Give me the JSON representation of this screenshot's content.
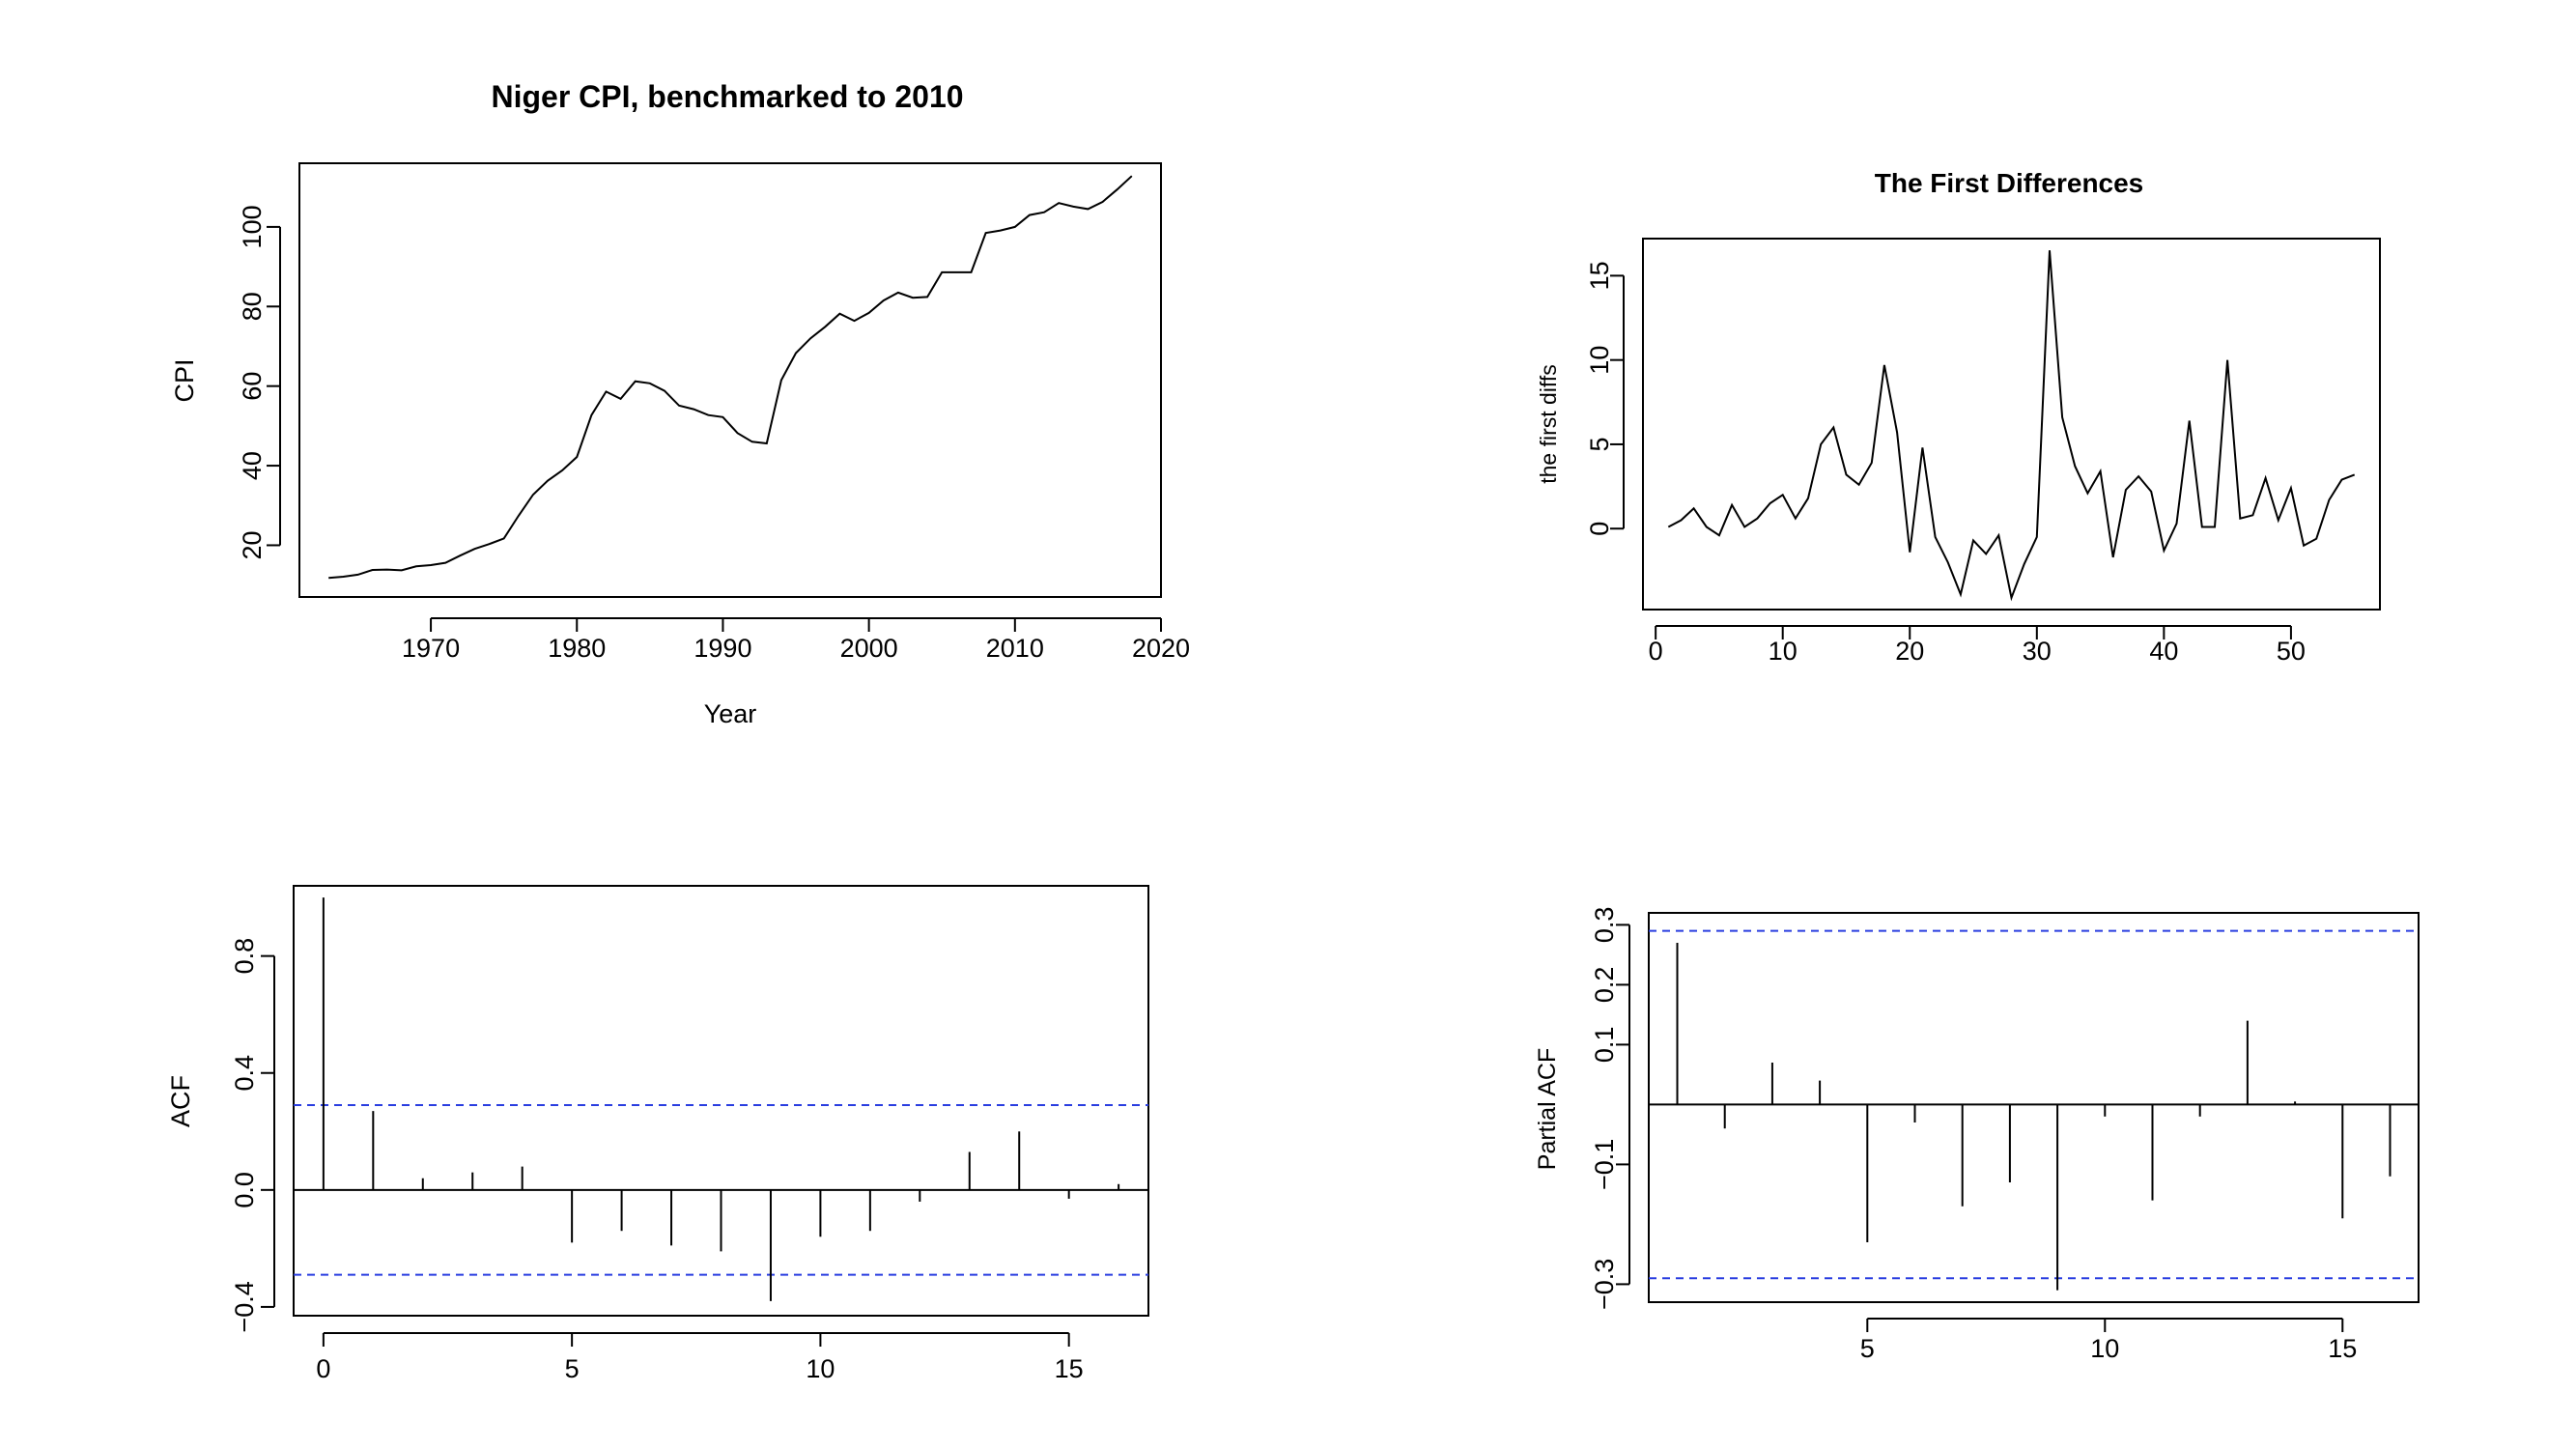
{
  "chart_data": [
    {
      "id": "cpi",
      "type": "line",
      "title": "Niger CPI, benchmarked to 2010",
      "xlabel": "Year",
      "ylabel": "CPI",
      "xlim": [
        1961,
        2020
      ],
      "ylim": [
        7,
        116
      ],
      "xticks": [
        1970,
        1980,
        1990,
        2000,
        2010,
        2020
      ],
      "yticks": [
        20,
        40,
        60,
        80,
        100
      ],
      "x": [
        1963,
        1964,
        1965,
        1966,
        1967,
        1968,
        1969,
        1970,
        1971,
        1972,
        1973,
        1974,
        1975,
        1976,
        1977,
        1978,
        1979,
        1980,
        1981,
        1982,
        1983,
        1984,
        1985,
        1986,
        1987,
        1988,
        1989,
        1990,
        1991,
        1992,
        1993,
        1994,
        1995,
        1996,
        1997,
        1998,
        1999,
        2000,
        2001,
        2002,
        2003,
        2004,
        2005,
        2006,
        2007,
        2008,
        2009,
        2010,
        2011,
        2012,
        2013,
        2014,
        2015,
        2016,
        2017,
        2018
      ],
      "values": [
        11.8,
        12.1,
        12.6,
        13.8,
        13.9,
        13.7,
        14.7,
        15.0,
        15.6,
        17.4,
        19.1,
        20.3,
        21.7,
        27.4,
        32.7,
        36.2,
        38.8,
        42.2,
        52.7,
        58.6,
        56.8,
        61.2,
        60.7,
        58.8,
        55.1,
        54.2,
        52.7,
        52.2,
        48.2,
        46.0,
        45.6,
        61.5,
        68.3,
        72.0,
        74.9,
        78.2,
        76.4,
        78.4,
        81.5,
        83.5,
        82.2,
        82.4,
        88.6,
        88.6,
        88.6,
        98.5,
        99.1,
        100.0,
        103.0,
        103.7,
        106.0,
        105.1,
        104.5,
        106.3,
        109.4,
        112.8
      ],
      "grid": false
    },
    {
      "id": "diffs",
      "type": "line",
      "title": "The First Differences",
      "xlabel": "",
      "ylabel": "the first diffs",
      "xlim": [
        -1,
        57
      ],
      "ylim": [
        -4.8,
        17.2
      ],
      "xticks": [
        0,
        10,
        20,
        30,
        40,
        50
      ],
      "yticks": [
        0,
        5,
        10,
        15
      ],
      "x": [
        1,
        2,
        3,
        4,
        5,
        6,
        7,
        8,
        9,
        10,
        11,
        12,
        13,
        14,
        15,
        16,
        17,
        18,
        19,
        20,
        21,
        22,
        23,
        24,
        25,
        26,
        27,
        28,
        29,
        30,
        31,
        32,
        33,
        34,
        35,
        36,
        37,
        38,
        39,
        40,
        41,
        42,
        43,
        44,
        45,
        46,
        47,
        48,
        49,
        50,
        51,
        52,
        53,
        54,
        55
      ],
      "values": [
        0.1,
        0.5,
        1.2,
        0.1,
        -0.4,
        1.4,
        0.1,
        0.6,
        1.5,
        2.0,
        0.6,
        1.8,
        5.0,
        6.0,
        3.2,
        2.6,
        3.9,
        9.7,
        5.7,
        -1.4,
        4.8,
        -0.5,
        -2.0,
        -3.9,
        -0.7,
        -1.5,
        -0.4,
        -4.1,
        -2.1,
        -0.5,
        16.5,
        6.6,
        3.7,
        2.1,
        3.4,
        -1.7,
        2.3,
        3.1,
        2.2,
        -1.3,
        0.3,
        6.4,
        0.1,
        0.1,
        10.0,
        0.6,
        0.8,
        3.0,
        0.5,
        2.4,
        -1.0,
        -0.6,
        1.7,
        2.9,
        3.2
      ],
      "grid": false
    },
    {
      "id": "acf",
      "type": "bar",
      "title": "",
      "xlabel": "",
      "ylabel": "ACF",
      "xlim": [
        -0.6,
        16.6
      ],
      "ylim": [
        -0.43,
        1.04
      ],
      "xticks": [
        0,
        5,
        10,
        15
      ],
      "yticks": [
        -0.4,
        0.0,
        0.4,
        0.8
      ],
      "ytick_labels": [
        "−0.4",
        "0.0",
        "0.4",
        "0.8"
      ],
      "lags": [
        0,
        1,
        2,
        3,
        4,
        5,
        6,
        7,
        8,
        9,
        10,
        11,
        12,
        13,
        14,
        15,
        16
      ],
      "values": [
        1.0,
        0.27,
        0.04,
        0.06,
        0.08,
        -0.18,
        -0.14,
        -0.19,
        -0.21,
        -0.38,
        -0.16,
        -0.14,
        -0.04,
        0.13,
        0.2,
        -0.03,
        0.02
      ],
      "ci": 0.29,
      "grid": false
    },
    {
      "id": "pacf",
      "type": "bar",
      "title": "",
      "xlabel": "",
      "ylabel": "Partial ACF",
      "xlim": [
        0.4,
        16.6
      ],
      "ylim": [
        -0.33,
        0.32
      ],
      "xticks": [
        5,
        10,
        15
      ],
      "yticks": [
        -0.3,
        -0.1,
        0.1,
        0.2,
        0.3
      ],
      "ytick_labels": [
        "−0.3",
        "−0.1",
        "0.1",
        "0.2",
        "0.3"
      ],
      "lags": [
        1,
        2,
        3,
        4,
        5,
        6,
        7,
        8,
        9,
        10,
        11,
        12,
        13,
        14,
        15,
        16
      ],
      "values": [
        0.27,
        -0.04,
        0.07,
        0.04,
        -0.23,
        -0.03,
        -0.17,
        -0.13,
        -0.31,
        -0.02,
        -0.16,
        -0.02,
        0.14,
        0.005,
        -0.19,
        -0.12
      ],
      "ci": 0.29,
      "grid": false
    }
  ]
}
